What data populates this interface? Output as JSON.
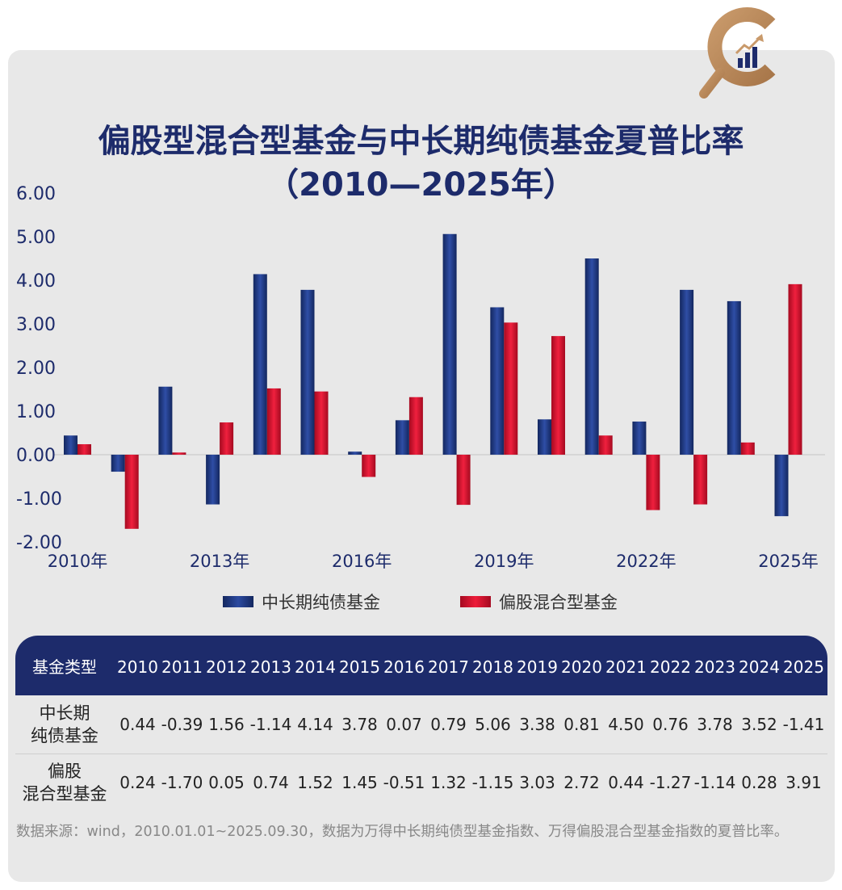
{
  "title_line1": "偏股型混合型基金与中长期纯债基金夏普比率",
  "title_line2": "（2010—2025年）",
  "chart_data": {
    "type": "bar",
    "title": "偏股型混合型基金与中长期纯债基金夏普比率（2010—2025年）",
    "categories": [
      "2010",
      "2011",
      "2012",
      "2013",
      "2014",
      "2015",
      "2016",
      "2017",
      "2018",
      "2019",
      "2020",
      "2021",
      "2022",
      "2023",
      "2024",
      "2025"
    ],
    "x_tick_labels": [
      "2010年",
      "2013年",
      "2016年",
      "2019年",
      "2022年",
      "2025年"
    ],
    "x_tick_indices": [
      0,
      3,
      6,
      9,
      12,
      15
    ],
    "y_tick_labels": [
      "6.00",
      "5.00",
      "4.00",
      "3.00",
      "2.00",
      "1.00",
      "0.00",
      "-1.00",
      "-2.00"
    ],
    "ylim": [
      -2,
      6
    ],
    "grid": false,
    "legend_position": "bottom",
    "series": [
      {
        "name": "中长期纯债基金",
        "color": "#1d3a8a",
        "values": [
          0.44,
          -0.39,
          1.56,
          -1.14,
          4.14,
          3.78,
          0.07,
          0.79,
          5.06,
          3.38,
          0.81,
          4.5,
          0.76,
          3.78,
          3.52,
          -1.41
        ]
      },
      {
        "name": "偏股混合型基金",
        "color": "#d0102b",
        "values": [
          0.24,
          -1.7,
          0.05,
          0.74,
          1.52,
          1.45,
          -0.51,
          1.32,
          -1.15,
          3.03,
          2.72,
          0.44,
          -1.27,
          -1.14,
          0.28,
          3.91
        ]
      }
    ]
  },
  "legend": {
    "series1": "中长期纯债基金",
    "series2": "偏股混合型基金"
  },
  "table": {
    "header_label": "基金类型",
    "years": [
      "2010",
      "2011",
      "2012",
      "2013",
      "2014",
      "2015",
      "2016",
      "2017",
      "2018",
      "2019",
      "2020",
      "2021",
      "2022",
      "2023",
      "2024",
      "2025"
    ],
    "row1_label_line1": "中长期",
    "row1_label_line2": "纯债基金",
    "row1_values": [
      "0.44",
      "-0.39",
      "1.56",
      "-1.14",
      "4.14",
      "3.78",
      "0.07",
      "0.79",
      "5.06",
      "3.38",
      "0.81",
      "4.50",
      "0.76",
      "3.78",
      "3.52",
      "-1.41"
    ],
    "row2_label_line1": "偏股",
    "row2_label_line2": "混合型基金",
    "row2_values": [
      "0.24",
      "-1.70",
      "0.05",
      "0.74",
      "1.52",
      "1.45",
      "-0.51",
      "1.32",
      "-1.15",
      "3.03",
      "2.72",
      "0.44",
      "-1.27",
      "-1.14",
      "0.28",
      "3.91"
    ]
  },
  "source_text": "数据来源：wind，2010.01.01~2025.09.30，数据为万得中长期纯债型基金指数、万得偏股混合型基金指数的夏普比率。",
  "colors": {
    "navy": "#1d2b6b",
    "bar_blue": "#1d3a8a",
    "bar_red": "#d0102b",
    "logo_gold": "#b8875a"
  }
}
